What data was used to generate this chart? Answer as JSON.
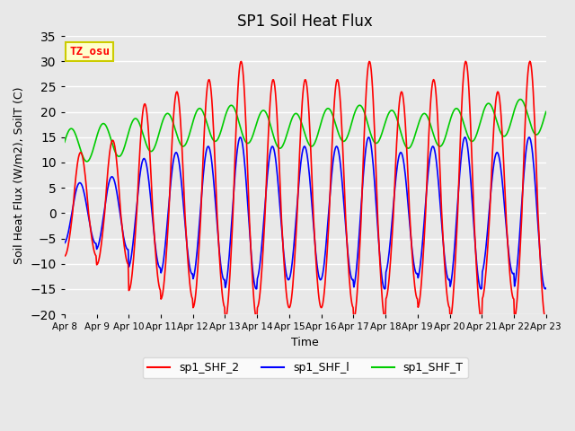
{
  "title": "SP1 Soil Heat Flux",
  "xlabel": "Time",
  "ylabel": "Soil Heat Flux (W/m2), SoilT (C)",
  "ylim": [
    -20,
    35
  ],
  "background_color": "#e8e8e8",
  "plot_bg_color": "#e8e8e8",
  "grid_color": "white",
  "color_shf2": "red",
  "color_shf1": "blue",
  "color_shft": "#00cc00",
  "tz_label": "TZ_osu",
  "tz_box_color": "#ffffcc",
  "tz_border_color": "#cccc00",
  "tz_text_color": "red",
  "x_tick_labels": [
    "Apr 8",
    "Apr 9",
    "Apr 10",
    "Apr 11",
    "Apr 12",
    "Apr 13",
    "Apr 14",
    "Apr 15",
    "Apr 16",
    "Apr 17",
    "Apr 18",
    "Apr 19",
    "Apr 20",
    "Apr 21",
    "Apr 22",
    "Apr 23"
  ],
  "n_days": 15,
  "samples_per_day": 48,
  "amp2_per_day": [
    10,
    12,
    18,
    20,
    22,
    25,
    22,
    22,
    22,
    25,
    20,
    22,
    25,
    20,
    25
  ],
  "shft_base": 15,
  "shft_amplitude": 3.5
}
